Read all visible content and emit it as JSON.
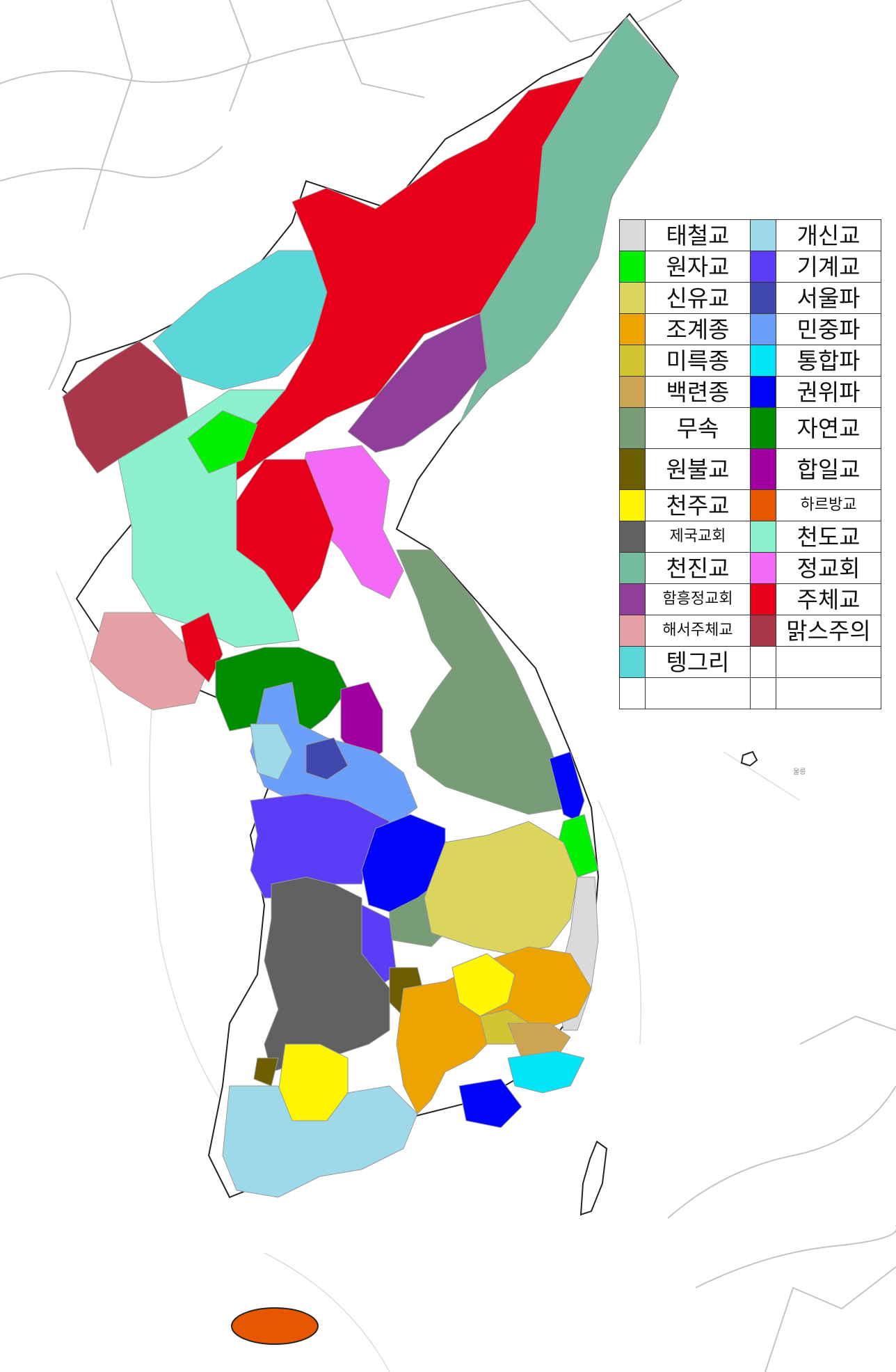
{
  "map": {
    "island_label": "울릉",
    "colors": {
      "sea": "#ffffff",
      "border": "#b8b8b8",
      "unassigned_land": "#ffffff"
    }
  },
  "legend": {
    "rows": [
      {
        "left": {
          "label": "태철교",
          "color": "#dadada"
        },
        "right": {
          "label": "개신교",
          "color": "#9dd9e8"
        }
      },
      {
        "left": {
          "label": "원자교",
          "color": "#00f000"
        },
        "right": {
          "label": "기계교",
          "color": "#5c3df7"
        }
      },
      {
        "left": {
          "label": "신유교",
          "color": "#dbd55e"
        },
        "right": {
          "label": "서울파",
          "color": "#4148ad"
        }
      },
      {
        "left": {
          "label": "조계종",
          "color": "#eca400"
        },
        "right": {
          "label": "민중파",
          "color": "#6a9ffb"
        }
      },
      {
        "left": {
          "label": "미륵종",
          "color": "#d3c433"
        },
        "right": {
          "label": "통합파",
          "color": "#00e5f8"
        }
      },
      {
        "left": {
          "label": "백련종",
          "color": "#cda552"
        },
        "right": {
          "label": "권위파",
          "color": "#0004fb"
        }
      },
      {
        "left": {
          "label": "무속",
          "color": "#789d76"
        },
        "right": {
          "label": "자연교",
          "color": "#008c00"
        }
      },
      {
        "left": {
          "label": "원불교",
          "color": "#6c5d00"
        },
        "right": {
          "label": "합일교",
          "color": "#a100a1"
        }
      },
      {
        "left": {
          "label": "천주교",
          "color": "#fff500"
        },
        "right": {
          "label": "하르방교",
          "color": "#e65700"
        }
      },
      {
        "left": {
          "label": "제국교회",
          "color": "#616161"
        },
        "right": {
          "label": "천도교",
          "color": "#8bf0cc"
        }
      },
      {
        "left": {
          "label": "천진교",
          "color": "#74bb9f"
        },
        "right": {
          "label": "정교회",
          "color": "#f26af5"
        }
      },
      {
        "left": {
          "label": "함흥정교회",
          "color": "#8f3f9a"
        },
        "right": {
          "label": "주체교",
          "color": "#e8001b"
        }
      },
      {
        "left": {
          "label": "해서주체교",
          "color": "#e5a0a5"
        },
        "right": {
          "label": "맑스주의",
          "color": "#aa364a"
        }
      },
      {
        "left": {
          "label": "텡그리",
          "color": "#5bd6d9"
        },
        "right": {
          "label": "",
          "color": "#ffffff"
        }
      },
      {
        "left": {
          "label": "",
          "color": "#ffffff"
        },
        "right": {
          "label": "",
          "color": "#ffffff"
        }
      }
    ]
  }
}
